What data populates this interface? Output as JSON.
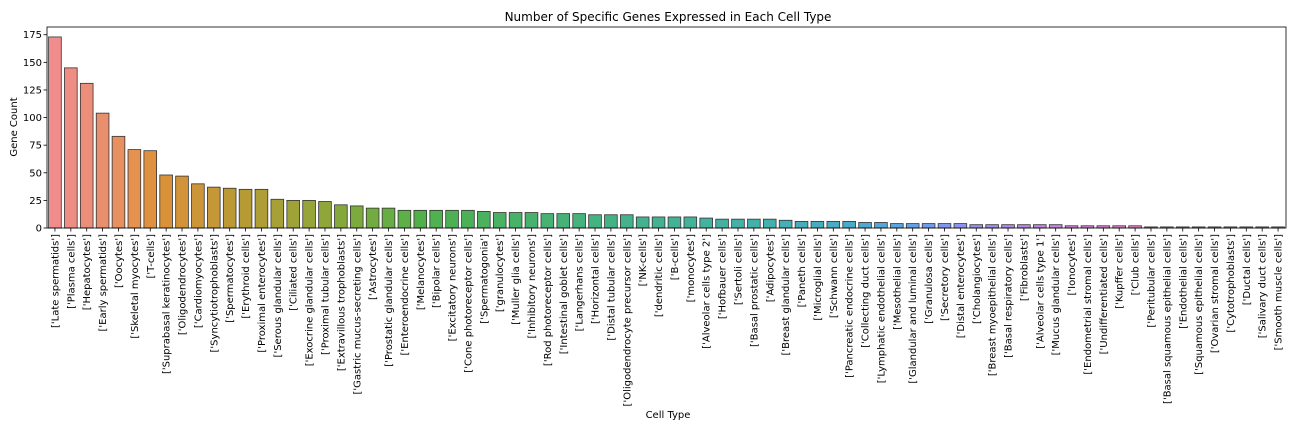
{
  "chart_data": {
    "type": "bar",
    "title": "Number of Specific Genes Expressed in Each Cell Type",
    "xlabel": "Cell Type",
    "ylabel": "Gene Count",
    "ylim": [
      0,
      182
    ],
    "yticks": [
      0,
      25,
      50,
      75,
      100,
      125,
      150,
      175
    ],
    "grid": false,
    "legend": "none",
    "categories": [
      "['Late spermatids']",
      "['Plasma cells']",
      "['Hepatocytes']",
      "['Early spermatids']",
      "['Oocytes']",
      "['Skeletal myocytes']",
      "['T-cells']",
      "['Suprabasal keratinocytes']",
      "['Oligodendrocytes']",
      "['Cardiomyocytes']",
      "['Syncytiotrophoblasts']",
      "['Spermatocytes']",
      "['Erythroid cells']",
      "['Proximal enterocytes']",
      "['Serous glandular cells']",
      "['Ciliated cells']",
      "['Exocrine glandular cells']",
      "['Proximal tubular cells']",
      "['Extravillous trophoblasts']",
      "['Gastric mucus-secreting cells']",
      "['Astrocytes']",
      "['Prostatic glandular cells']",
      "['Enteroendocrine cells']",
      "['Melanocytes']",
      "['Bipolar cells']",
      "['Excitatory neurons']",
      "['Cone photoreceptor cells']",
      "['Spermatogonia']",
      "['granulocytes']",
      "['Muller glia cells']",
      "['Inhibitory neurons']",
      "['Rod photoreceptor cells']",
      "['Intestinal goblet cells']",
      "['Langerhans cells']",
      "['Horizontal cells']",
      "['Distal tubular cells']",
      "['Oligodendrocyte precursor cells']",
      "['NK-cells']",
      "['dendritic cells']",
      "['B-cells']",
      "['monocytes']",
      "['Alveolar cells type 2']",
      "['Hofbauer cells']",
      "['Sertoli cells']",
      "['Basal prostatic cells']",
      "['Adipocytes']",
      "['Breast glandular cells']",
      "['Paneth cells']",
      "['Microglial cells']",
      "['Schwann cells']",
      "['Pancreatic endocrine cells']",
      "['Collecting duct cells']",
      "['Lymphatic endothelial cells']",
      "['Mesothelial cells']",
      "['Glandular and luminal cells']",
      "['Granulosa cells']",
      "['Secretory cells']",
      "['Distal enterocytes']",
      "['Cholangiocytes']",
      "['Breast myoepithelial cells']",
      "['Basal respiratory cells']",
      "['Fibroblasts']",
      "['Alveolar cells type 1']",
      "['Mucus glandular cells']",
      "['Ionocytes']",
      "['Endometrial stromal cells']",
      "['Undifferentiated cells']",
      "['Kupffer cells']",
      "['Club cells']",
      "['Peritubular cells']",
      "['Basal squamous epithelial cells']",
      "['Endothelial cells']",
      "['Squamous epithelial cells']",
      "['Ovarian stromal cells']",
      "['Cytotrophoblasts']",
      "['Ductal cells']",
      "['Salivary duct cells']",
      "['Smooth muscle cells']"
    ],
    "values": [
      173,
      145,
      131,
      104,
      83,
      71,
      70,
      48,
      47,
      40,
      37,
      36,
      35,
      35,
      26,
      25,
      25,
      24,
      21,
      20,
      18,
      18,
      16,
      16,
      16,
      16,
      16,
      15,
      14,
      14,
      14,
      13,
      13,
      13,
      12,
      12,
      12,
      10,
      10,
      10,
      10,
      9,
      8,
      8,
      8,
      8,
      7,
      6,
      6,
      6,
      6,
      5,
      5,
      4,
      4,
      4,
      4,
      4,
      3,
      3,
      3,
      3,
      3,
      3,
      2,
      2,
      2,
      2,
      2,
      1,
      1,
      1,
      1,
      1,
      1,
      1,
      1,
      1
    ],
    "colors": [
      "#f08c8c",
      "#ee8d83",
      "#ec8e79",
      "#ea8f6e",
      "#e89160",
      "#e5914f",
      "#e0913f",
      "#d9923a",
      "#d39338",
      "#cc9537",
      "#c59736",
      "#bd9935",
      "#b69b35",
      "#ae9e35",
      "#a6a036",
      "#9ea237",
      "#96a438",
      "#8ea63a",
      "#85a83c",
      "#7caa3e",
      "#72ac41",
      "#68ad44",
      "#5daf47",
      "#52b04b",
      "#4fb14f",
      "#4db154",
      "#4bb159",
      "#4ab25e",
      "#49b263",
      "#48b268",
      "#47b26d",
      "#47b272",
      "#46b277",
      "#46b27c",
      "#45b281",
      "#45b285",
      "#44b28a",
      "#44b28e",
      "#44b292",
      "#43b297",
      "#43b29b",
      "#43b29f",
      "#43b2a3",
      "#43b1a7",
      "#43b1ab",
      "#43b0b0",
      "#44afb5",
      "#45aeba",
      "#46adc0",
      "#48acc6",
      "#4aaacd",
      "#4ea8d4",
      "#53a6db",
      "#5ba3e1",
      "#65a0e7",
      "#719ceb",
      "#7e98ee",
      "#8b94f0",
      "#9890f1",
      "#a48cf1",
      "#b088f0",
      "#bb85ee",
      "#c582eb",
      "#cf80e8",
      "#d87ee3",
      "#df7dde",
      "#e57cd8",
      "#ea7dd1",
      "#ed7ec9",
      "#ef80c1",
      "#f082b9",
      "#f184b1",
      "#f186a9",
      "#f188a2",
      "#f08a9b",
      "#f08a95",
      "#f08b90",
      "#f08b8c"
    ]
  }
}
